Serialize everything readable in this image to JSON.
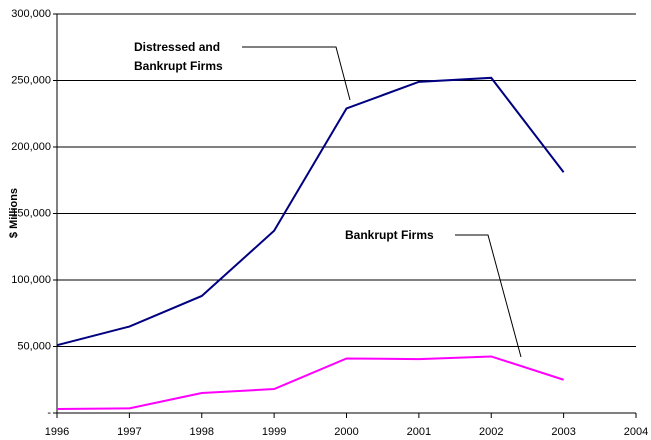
{
  "chart_data": {
    "type": "line",
    "y_label": "$ Millions",
    "x": [
      1996,
      1997,
      1998,
      1999,
      2000,
      2001,
      2002,
      2003
    ],
    "series": [
      {
        "name": "Distressed and Bankrupt Firms",
        "color": "#000080",
        "values": [
          51000,
          65000,
          88000,
          137000,
          229000,
          249000,
          252000,
          181000
        ]
      },
      {
        "name": "Bankrupt Firms",
        "color": "#ff00ff",
        "values": [
          3000,
          3500,
          15000,
          18000,
          41000,
          40500,
          42500,
          25000
        ]
      }
    ],
    "xlim": [
      1996,
      2004
    ],
    "xticks": [
      1996,
      1997,
      1998,
      1999,
      2000,
      2001,
      2002,
      2003,
      2004
    ],
    "ylim": [
      0,
      300000
    ],
    "yticks": [
      {
        "value": 0,
        "label": "-"
      },
      {
        "value": 50000,
        "label": "50,000"
      },
      {
        "value": 100000,
        "label": "100,000"
      },
      {
        "value": 150000,
        "label": "150,000"
      },
      {
        "value": 200000,
        "label": "200,000"
      },
      {
        "value": 250000,
        "label": "250,000"
      },
      {
        "value": 300000,
        "label": "300,000"
      }
    ],
    "grid": true
  }
}
